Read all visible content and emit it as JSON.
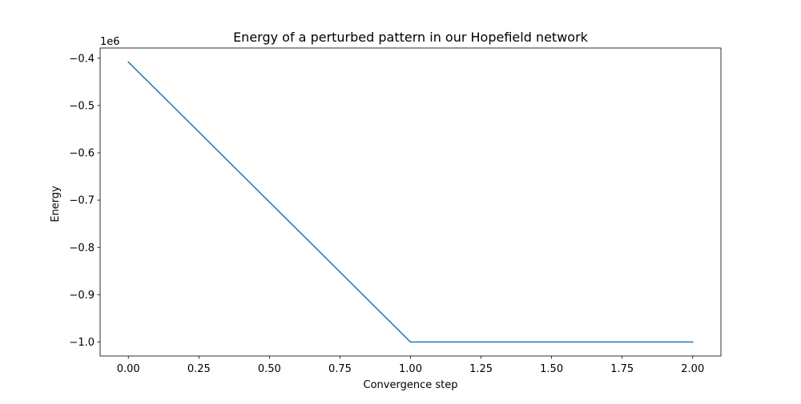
{
  "chart_data": {
    "type": "line",
    "title": "Energy of a perturbed pattern in our Hopefield network",
    "xlabel": "Convergence step",
    "ylabel": "Energy",
    "y_offset_text": "1e6",
    "x": [
      0,
      1,
      2
    ],
    "series": [
      {
        "values": [
          -0.408,
          -1.0,
          -1.0
        ],
        "color": "#1f77b4"
      }
    ],
    "xlim": [
      -0.1,
      2.1
    ],
    "ylim": [
      -1.0296,
      -0.3784
    ],
    "x_ticks": [
      0,
      0.25,
      0.5,
      0.75,
      1,
      1.25,
      1.5,
      1.75,
      2
    ],
    "x_tick_labels": [
      "0.00",
      "0.25",
      "0.50",
      "0.75",
      "1.00",
      "1.25",
      "1.50",
      "1.75",
      "2.00"
    ],
    "y_ticks": [
      -0.4,
      -0.5,
      -0.6,
      -0.7,
      -0.8,
      -0.9,
      -1.0
    ],
    "y_tick_labels": [
      "−0.4",
      "−0.5",
      "−0.6",
      "−0.7",
      "−0.8",
      "−0.9",
      "−1.0"
    ],
    "grid": false,
    "legend": "none"
  }
}
